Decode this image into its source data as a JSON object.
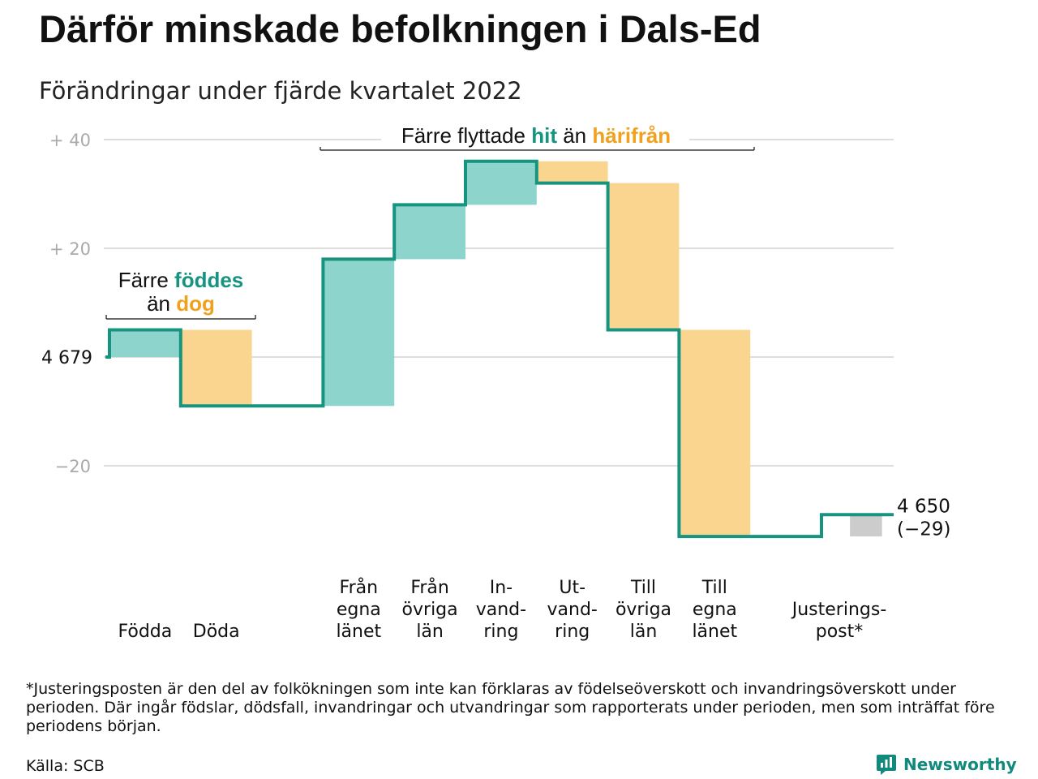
{
  "header": {
    "title": "Därför minskade befolkningen i Dals-Ed",
    "subtitle": "Förändringar under fjärde kvartalet 2022"
  },
  "chart_data": {
    "type": "waterfall",
    "start": {
      "label": "4 679",
      "value": 4679
    },
    "end": {
      "label": "4 650",
      "change": "(−29)",
      "value": 4650
    },
    "yaxis": {
      "relative_range": [
        -30,
        42
      ],
      "ticks": [
        {
          "value": 40,
          "label": "+ 40"
        },
        {
          "value": 20,
          "label": "+ 20"
        },
        {
          "value": 0,
          "label": "4 679"
        },
        {
          "value": -20,
          "label": "−20"
        }
      ],
      "grid": true
    },
    "steps": [
      {
        "label": [
          "Födda"
        ],
        "change": 5,
        "kind": "in"
      },
      {
        "label": [
          "Döda"
        ],
        "change": -14,
        "kind": "out"
      },
      {
        "label": [],
        "change": 0,
        "kind": "gap"
      },
      {
        "label": [
          "Från",
          "egna",
          "länet"
        ],
        "change": 27,
        "kind": "in"
      },
      {
        "label": [
          "Från",
          "övriga",
          "län"
        ],
        "change": 10,
        "kind": "in"
      },
      {
        "label": [
          "In-",
          "vand-",
          "ring"
        ],
        "change": 8,
        "kind": "in"
      },
      {
        "label": [
          "Ut-",
          "vand-",
          "ring"
        ],
        "change": -4,
        "kind": "out"
      },
      {
        "label": [
          "Till",
          "övriga",
          "län"
        ],
        "change": -27,
        "kind": "out"
      },
      {
        "label": [
          "Till",
          "egna",
          "länet"
        ],
        "change": -38,
        "kind": "out"
      },
      {
        "label": [],
        "change": 0,
        "kind": "gap"
      },
      {
        "label": [
          "Justerings-",
          "post*"
        ],
        "change": 4,
        "kind": "adjust"
      }
    ],
    "annotations": [
      {
        "parts": [
          {
            "text": "Färre ",
            "style": "plain"
          },
          {
            "text": "föddes",
            "style": "in"
          }
        ],
        "line2": [
          {
            "text": "än ",
            "style": "plain"
          },
          {
            "text": "dog",
            "style": "out"
          }
        ]
      },
      {
        "parts": [
          {
            "text": "Färre flyttade ",
            "style": "plain"
          },
          {
            "text": "hit",
            "style": "in"
          },
          {
            "text": " än ",
            "style": "plain"
          },
          {
            "text": "härifrån",
            "style": "out"
          }
        ]
      }
    ],
    "colors": {
      "in_fill": "#8dd5cc",
      "out_fill": "#fad58f",
      "adjust_fill": "#cccccc",
      "line": "#16947f",
      "in_text": "#16947f",
      "out_text": "#f0a11e",
      "grid": "#dddddd",
      "tick_text": "#aaaaaa"
    }
  },
  "footer": {
    "note": "*Justeringsposten är den del av folkökningen som inte kan förklaras av födelseöverskott och invandringsöverskott under perioden. Där ingår födslar, dödsfall, invandringar och utvandringar som rapporterats under perioden, men som inträffat före periodens början.",
    "source": "Källa: SCB",
    "brand": "Newsworthy",
    "brand_color": "#0f8a7c"
  }
}
